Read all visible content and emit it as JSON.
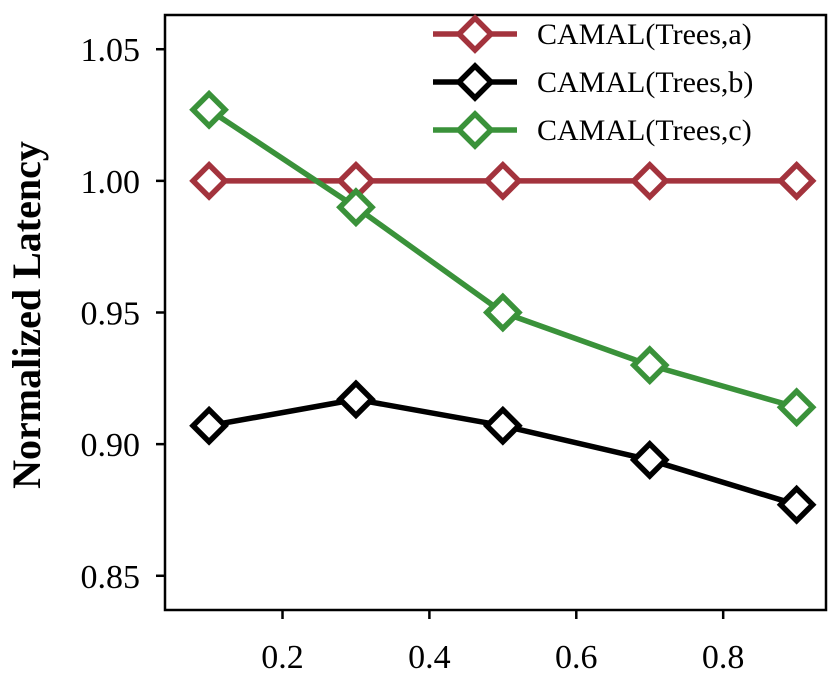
{
  "chart_data": {
    "type": "line",
    "title": "",
    "xlabel": "",
    "ylabel": "Normalized Latency",
    "x": [
      0.1,
      0.3,
      0.5,
      0.7,
      0.9
    ],
    "xlim": [
      0.04,
      0.94
    ],
    "ylim": [
      0.837,
      1.063
    ],
    "xticks": [
      0.2,
      0.4,
      0.6,
      0.8
    ],
    "xtick_labels": [
      "0.2",
      "0.4",
      "0.6",
      "0.8"
    ],
    "yticks": [
      0.85,
      0.9,
      0.95,
      1.0,
      1.05
    ],
    "ytick_labels": [
      "0.85",
      "0.90",
      "0.95",
      "1.00",
      "1.05"
    ],
    "grid": false,
    "legend_position": "top-right",
    "series": [
      {
        "name": "CAMAL(Trees,a)",
        "color": "#a3333d",
        "values": [
          1.0,
          1.0,
          1.0,
          1.0,
          1.0
        ]
      },
      {
        "name": "CAMAL(Trees,b)",
        "color": "#000000",
        "values": [
          0.907,
          0.917,
          0.907,
          0.894,
          0.877
        ]
      },
      {
        "name": "CAMAL(Trees,c)",
        "color": "#3a923a",
        "values": [
          1.027,
          0.99,
          0.95,
          0.93,
          0.914
        ]
      }
    ]
  }
}
